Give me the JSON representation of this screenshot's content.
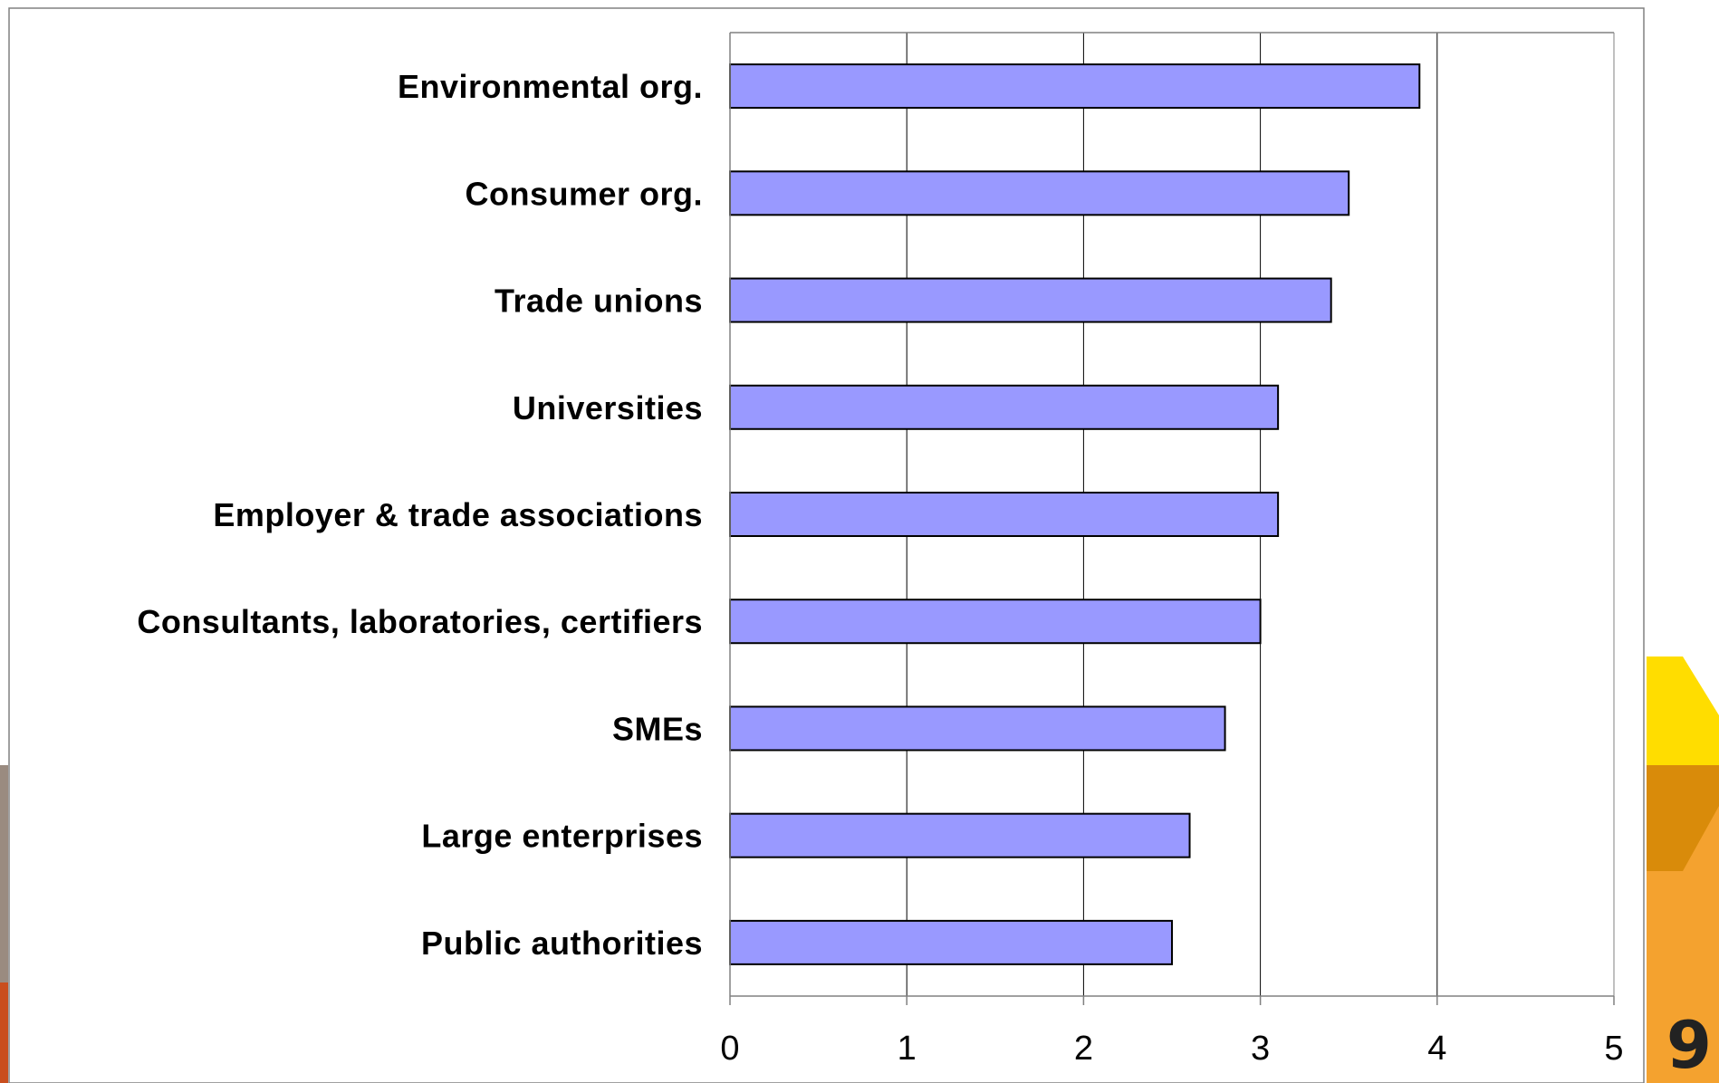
{
  "chart_data": {
    "type": "bar",
    "orientation": "horizontal",
    "categories": [
      "Environmental org.",
      "Consumer org.",
      "Trade unions",
      "Universities",
      "Employer & trade associations",
      "Consultants, laboratories, certifiers",
      "SMEs",
      "Large enterprises",
      "Public authorities"
    ],
    "values": [
      3.9,
      3.5,
      3.4,
      3.1,
      3.1,
      3.0,
      2.8,
      2.6,
      2.5
    ],
    "xlim": [
      0,
      5
    ],
    "xticks": [
      "0",
      "1",
      "2",
      "3",
      "4",
      "5"
    ],
    "title": "",
    "xlabel": "",
    "ylabel": "",
    "grid": "vertical",
    "legend": "none"
  },
  "colors": {
    "bar_fill": "#9999ff",
    "bar_stroke": "#000000",
    "gridline": "#000000",
    "axis": "#808080",
    "deco_yellow": "#ffdd00",
    "deco_dark_orange": "#d98b0a",
    "deco_orange": "#f4a22f",
    "deco_taupe": "#9a8b80",
    "deco_rust": "#c94e1e"
  },
  "slide": {
    "page_number": "9"
  }
}
